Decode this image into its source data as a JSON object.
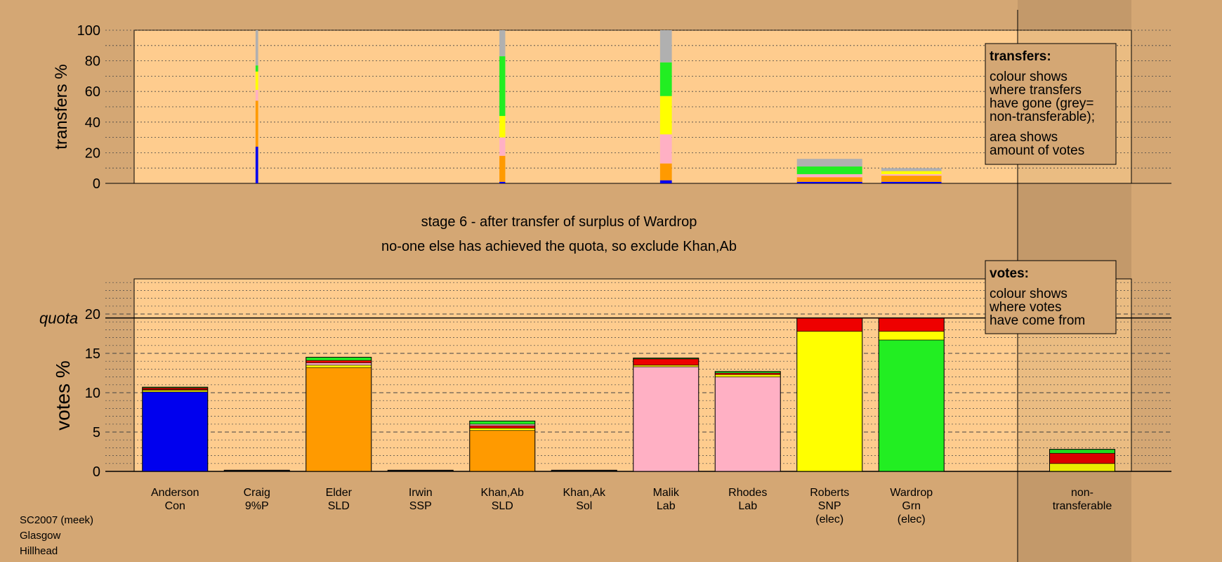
{
  "chart_data": [
    {
      "type": "bar",
      "panel": "transfers",
      "ylabel": "transfers %",
      "ylim": [
        0,
        100
      ],
      "yticks": [
        0,
        20,
        40,
        60,
        80,
        100
      ],
      "grid": true,
      "categories": [
        "Anderson Con",
        "Craig 9%P",
        "Elder SLD",
        "Irwin SSP",
        "Khan,Ab SLD",
        "Khan,Ak Sol",
        "Malik Lab",
        "Rhodes Lab",
        "Roberts SNP (elec)",
        "Wardrop Grn (elec)"
      ],
      "stacks": [
        {
          "category": "Craig 9%P",
          "segments": [
            {
              "color": "#0000ee",
              "value": 24
            },
            {
              "color": "#ff9a00",
              "value": 30
            },
            {
              "color": "#ffb0c4",
              "value": 7
            },
            {
              "color": "#ffff00",
              "value": 12
            },
            {
              "color": "#22ee22",
              "value": 4
            },
            {
              "color": "#b0b0b0",
              "value": 23
            }
          ]
        },
        {
          "category": "Khan,Ab SLD",
          "segments": [
            {
              "color": "#0000ee",
              "value": 1
            },
            {
              "color": "#ff9a00",
              "value": 17
            },
            {
              "color": "#ffb0c4",
              "value": 12
            },
            {
              "color": "#ffff00",
              "value": 14
            },
            {
              "color": "#22ee22",
              "value": 39
            },
            {
              "color": "#b0b0b0",
              "value": 17
            }
          ]
        },
        {
          "category": "Malik Lab",
          "segments": [
            {
              "color": "#0000ee",
              "value": 2
            },
            {
              "color": "#ff9a00",
              "value": 11
            },
            {
              "color": "#ffb0c4",
              "value": 19
            },
            {
              "color": "#ffff00",
              "value": 25
            },
            {
              "color": "#22ee22",
              "value": 22
            },
            {
              "color": "#b0b0b0",
              "value": 21
            }
          ]
        },
        {
          "category": "Roberts SNP (elec)",
          "segments": [
            {
              "color": "#0000ee",
              "value": 1
            },
            {
              "color": "#ff9a00",
              "value": 3
            },
            {
              "color": "#ffb0c4",
              "value": 2
            },
            {
              "color": "#22ee22",
              "value": 5
            },
            {
              "color": "#b0b0b0",
              "value": 5
            }
          ]
        },
        {
          "category": "Wardrop Grn (elec)",
          "segments": [
            {
              "color": "#0000ee",
              "value": 1
            },
            {
              "color": "#ff9a00",
              "value": 4
            },
            {
              "color": "#ffb0c4",
              "value": 1
            },
            {
              "color": "#ffff00",
              "value": 2
            },
            {
              "color": "#b0b0b0",
              "value": 2
            }
          ]
        }
      ],
      "legend": {
        "title": "transfers:",
        "line1": "colour shows",
        "line2": "where transfers",
        "line3": "have gone (grey=",
        "line4": "non-transferable);",
        "line5": "area shows",
        "line6": "amount of votes"
      }
    },
    {
      "type": "bar",
      "panel": "votes",
      "ylabel": "votes %",
      "ylim": [
        0,
        25
      ],
      "yticks": [
        0,
        5,
        10,
        15,
        20
      ],
      "quota_label": "quota",
      "quota": 19.5,
      "grid": true,
      "categories": [
        {
          "name": "Anderson",
          "party": "Con",
          "status": ""
        },
        {
          "name": "Craig",
          "party": "9%P",
          "status": ""
        },
        {
          "name": "Elder",
          "party": "SLD",
          "status": ""
        },
        {
          "name": "Irwin",
          "party": "SSP",
          "status": ""
        },
        {
          "name": "Khan,Ab",
          "party": "SLD",
          "status": ""
        },
        {
          "name": "Khan,Ak",
          "party": "Sol",
          "status": ""
        },
        {
          "name": "Malik",
          "party": "Lab",
          "status": ""
        },
        {
          "name": "Rhodes",
          "party": "Lab",
          "status": ""
        },
        {
          "name": "Roberts",
          "party": "SNP",
          "status": "(elec)"
        },
        {
          "name": "Wardrop",
          "party": "Grn",
          "status": "(elec)"
        }
      ],
      "nontransferable_label_1": "non-",
      "nontransferable_label_2": "transferable",
      "stacks": [
        [
          {
            "color": "#0000ee",
            "value": 10.1
          },
          {
            "color": "#ffff00",
            "value": 0.2
          },
          {
            "color": "#ff9a00",
            "value": 0.1
          },
          {
            "color": "#ee0000",
            "value": 0.2
          },
          {
            "color": "#22ee22",
            "value": 0.1
          }
        ],
        [
          {
            "color": "#222222",
            "value": 0.15
          }
        ],
        [
          {
            "color": "#ff9a00",
            "value": 13.2
          },
          {
            "color": "#ffff00",
            "value": 0.3
          },
          {
            "color": "#ffb0c4",
            "value": 0.3
          },
          {
            "color": "#ee0000",
            "value": 0.3
          },
          {
            "color": "#22ee22",
            "value": 0.4
          }
        ],
        [
          {
            "color": "#222222",
            "value": 0.15
          }
        ],
        [
          {
            "color": "#ff9a00",
            "value": 5.2
          },
          {
            "color": "#ffff00",
            "value": 0.3
          },
          {
            "color": "#ee0000",
            "value": 0.3
          },
          {
            "color": "#ffb0c4",
            "value": 0.2
          },
          {
            "color": "#22ee22",
            "value": 0.4
          }
        ],
        [
          {
            "color": "#222222",
            "value": 0.15
          }
        ],
        [
          {
            "color": "#ffb0c4",
            "value": 13.3
          },
          {
            "color": "#ffff00",
            "value": 0.2
          },
          {
            "color": "#ee0000",
            "value": 0.8
          },
          {
            "color": "#22ee22",
            "value": 0.1
          }
        ],
        [
          {
            "color": "#ffb0c4",
            "value": 12.0
          },
          {
            "color": "#ffff00",
            "value": 0.3
          },
          {
            "color": "#ee0000",
            "value": 0.2
          },
          {
            "color": "#22ee22",
            "value": 0.2
          }
        ],
        [
          {
            "color": "#ffff00",
            "value": 17.8
          },
          {
            "color": "#ee0000",
            "value": 1.7
          }
        ],
        [
          {
            "color": "#22ee22",
            "value": 16.7
          },
          {
            "color": "#ffff00",
            "value": 1.1
          },
          {
            "color": "#ee0000",
            "value": 1.7
          }
        ]
      ],
      "nontransferable": [
        {
          "color": "#ffff00",
          "value": 1.0
        },
        {
          "color": "#ee0000",
          "value": 1.3
        },
        {
          "color": "#22ee22",
          "value": 0.5
        }
      ],
      "legend": {
        "title": "votes:",
        "line1": "colour shows",
        "line2": "where votes",
        "line3": "have come from"
      }
    }
  ],
  "stage_title": "stage 6 - after transfer of surplus of Wardrop",
  "stage_subtitle": "no-one else has achieved the quota, so exclude Khan,Ab",
  "footer": {
    "line1": "SC2007 (meek)",
    "line2": "Glasgow",
    "line3": "Hillhead"
  },
  "colors": {
    "background": "#d4a774",
    "plot": "#fecc8e"
  }
}
